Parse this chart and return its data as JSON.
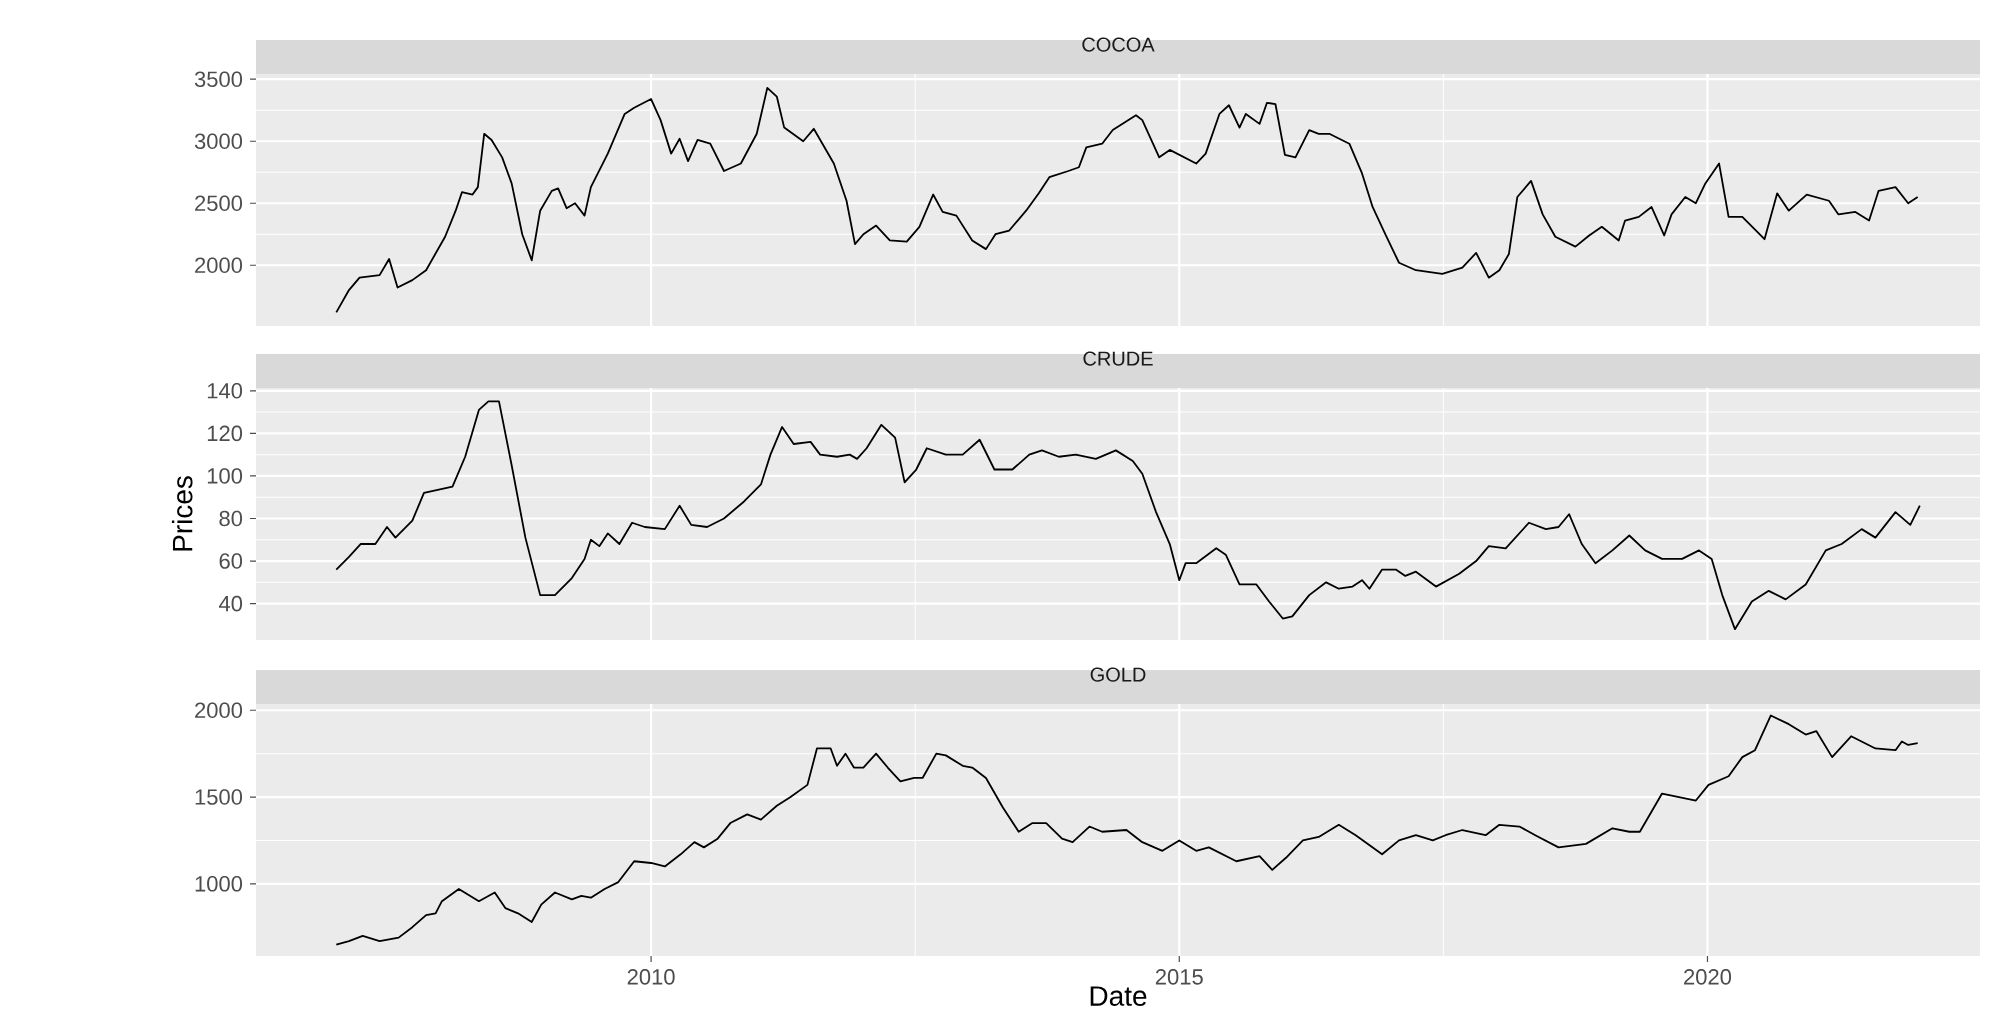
{
  "chart_data": [
    {
      "type": "line",
      "title": "COCOA",
      "tick_labels": "y",
      "grid": true,
      "xlim": [
        2006.26,
        2022.58
      ],
      "xticks": [
        2010,
        2015,
        2020
      ],
      "ylim": [
        1510,
        3542
      ],
      "yticks": [
        2000,
        2500,
        3000,
        3500
      ],
      "series": [
        {
          "color": "#000000",
          "x": [
            2007.02,
            2007.14,
            2007.24,
            2007.43,
            2007.52,
            2007.6,
            2007.74,
            2007.87,
            2008.05,
            2008.15,
            2008.21,
            2008.31,
            2008.36,
            2008.42,
            2008.49,
            2008.59,
            2008.68,
            2008.78,
            2008.87,
            2008.95,
            2009.06,
            2009.12,
            2009.2,
            2009.28,
            2009.37,
            2009.43,
            2009.59,
            2009.75,
            2009.84,
            2010.0,
            2010.09,
            2010.19,
            2010.27,
            2010.35,
            2010.44,
            2010.56,
            2010.69,
            2010.85,
            2011.0,
            2011.1,
            2011.19,
            2011.26,
            2011.44,
            2011.54,
            2011.73,
            2011.85,
            2011.93,
            2012.01,
            2012.13,
            2012.26,
            2012.42,
            2012.54,
            2012.67,
            2012.76,
            2012.89,
            2013.04,
            2013.17,
            2013.26,
            2013.39,
            2013.55,
            2013.67,
            2013.77,
            2013.95,
            2014.05,
            2014.12,
            2014.27,
            2014.37,
            2014.59,
            2014.65,
            2014.81,
            2014.91,
            2015.16,
            2015.25,
            2015.38,
            2015.47,
            2015.57,
            2015.63,
            2015.76,
            2015.83,
            2015.91,
            2016.0,
            2016.1,
            2016.23,
            2016.32,
            2016.42,
            2016.61,
            2016.73,
            2016.83,
            2016.95,
            2017.08,
            2017.24,
            2017.49,
            2017.68,
            2017.81,
            2017.93,
            2018.03,
            2018.12,
            2018.2,
            2018.33,
            2018.44,
            2018.56,
            2018.75,
            2018.88,
            2019.0,
            2019.16,
            2019.22,
            2019.35,
            2019.47,
            2019.59,
            2019.66,
            2019.79,
            2019.89,
            2019.98,
            2020.11,
            2020.2,
            2020.33,
            2020.54,
            2020.66,
            2020.77,
            2020.94,
            2021.15,
            2021.24,
            2021.4,
            2021.53,
            2021.62,
            2021.78,
            2021.9,
            2021.99
          ],
          "values": [
            1620,
            1800,
            1900,
            1920,
            2050,
            1820,
            1880,
            1960,
            2230,
            2440,
            2590,
            2570,
            2630,
            3060,
            3010,
            2870,
            2660,
            2250,
            2040,
            2440,
            2600,
            2620,
            2460,
            2500,
            2400,
            2630,
            2900,
            3220,
            3270,
            3340,
            3170,
            2900,
            3020,
            2840,
            3010,
            2980,
            2760,
            2820,
            3060,
            3430,
            3360,
            3110,
            3000,
            3100,
            2820,
            2520,
            2170,
            2250,
            2320,
            2200,
            2190,
            2310,
            2570,
            2430,
            2400,
            2200,
            2130,
            2250,
            2280,
            2440,
            2580,
            2710,
            2760,
            2790,
            2950,
            2980,
            3090,
            3210,
            3170,
            2870,
            2930,
            2820,
            2900,
            3220,
            3290,
            3110,
            3220,
            3140,
            3310,
            3300,
            2890,
            2870,
            3090,
            3060,
            3060,
            2980,
            2740,
            2470,
            2250,
            2020,
            1960,
            1930,
            1980,
            2100,
            1900,
            1960,
            2090,
            2550,
            2680,
            2410,
            2230,
            2150,
            2240,
            2310,
            2200,
            2360,
            2390,
            2470,
            2240,
            2410,
            2550,
            2500,
            2660,
            2820,
            2390,
            2390,
            2210,
            2580,
            2440,
            2570,
            2520,
            2410,
            2430,
            2360,
            2600,
            2630,
            2500,
            2550
          ]
        }
      ]
    },
    {
      "type": "line",
      "title": "CRUDE",
      "ylabel": "Prices",
      "tick_labels": "y",
      "grid": true,
      "xlim": [
        2006.26,
        2022.58
      ],
      "xticks": [
        2010,
        2015,
        2020
      ],
      "ylim": [
        22.9,
        141.3
      ],
      "yticks": [
        40,
        60,
        80,
        100,
        120,
        140
      ],
      "series": [
        {
          "color": "#000000",
          "x": [
            2007.02,
            2007.14,
            2007.25,
            2007.39,
            2007.5,
            2007.58,
            2007.74,
            2007.85,
            2008.12,
            2008.24,
            2008.37,
            2008.46,
            2008.56,
            2008.68,
            2008.81,
            2008.95,
            2009.09,
            2009.25,
            2009.37,
            2009.43,
            2009.51,
            2009.59,
            2009.7,
            2009.82,
            2009.94,
            2010.13,
            2010.27,
            2010.38,
            2010.53,
            2010.69,
            2010.88,
            2011.04,
            2011.13,
            2011.24,
            2011.35,
            2011.51,
            2011.6,
            2011.76,
            2011.88,
            2011.95,
            2012.04,
            2012.18,
            2012.31,
            2012.4,
            2012.51,
            2012.61,
            2012.79,
            2012.95,
            2013.11,
            2013.25,
            2013.42,
            2013.58,
            2013.7,
            2013.86,
            2014.02,
            2014.21,
            2014.4,
            2014.56,
            2014.65,
            2014.78,
            2014.91,
            2015.0,
            2015.06,
            2015.16,
            2015.35,
            2015.44,
            2015.57,
            2015.73,
            2015.85,
            2015.98,
            2016.07,
            2016.23,
            2016.39,
            2016.51,
            2016.64,
            2016.73,
            2016.8,
            2016.92,
            2017.05,
            2017.14,
            2017.24,
            2017.43,
            2017.65,
            2017.81,
            2017.93,
            2018.09,
            2018.31,
            2018.47,
            2018.59,
            2018.69,
            2018.81,
            2018.94,
            2019.1,
            2019.26,
            2019.41,
            2019.57,
            2019.76,
            2019.92,
            2020.04,
            2020.14,
            2020.26,
            2020.42,
            2020.58,
            2020.74,
            2020.93,
            2021.12,
            2021.27,
            2021.46,
            2021.59,
            2021.78,
            2021.92,
            2022.01
          ],
          "values": [
            56,
            62,
            68,
            68,
            76,
            71,
            79,
            92,
            95,
            109,
            131,
            135,
            135,
            105,
            71,
            44,
            44,
            52,
            61,
            70,
            67,
            73,
            68,
            78,
            76,
            75,
            86,
            77,
            76,
            80,
            88,
            96,
            110,
            123,
            115,
            116,
            110,
            109,
            110,
            108,
            113,
            124,
            118,
            97,
            103,
            113,
            110,
            110,
            117,
            103,
            103,
            110,
            112,
            109,
            110,
            108,
            112,
            107,
            101,
            83,
            68,
            51,
            59,
            59,
            66,
            63,
            49,
            49,
            41,
            33,
            34,
            44,
            50,
            47,
            48,
            51,
            47,
            56,
            56,
            53,
            55,
            48,
            54,
            60,
            67,
            66,
            78,
            75,
            76,
            82,
            68,
            59,
            65,
            72,
            65,
            61,
            61,
            65,
            61,
            44,
            28,
            41,
            46,
            42,
            49,
            65,
            68,
            75,
            71,
            83,
            77,
            86
          ]
        }
      ]
    },
    {
      "type": "line",
      "title": "GOLD",
      "xlabel": "Date",
      "grid": true,
      "xlim": [
        2006.26,
        2022.58
      ],
      "xticks": [
        2010,
        2015,
        2020
      ],
      "ylim": [
        584,
        2036
      ],
      "yticks": [
        1000,
        1500,
        2000
      ],
      "series": [
        {
          "color": "#000000",
          "x": [
            2007.02,
            2007.14,
            2007.27,
            2007.43,
            2007.61,
            2007.74,
            2007.87,
            2007.96,
            2008.02,
            2008.18,
            2008.37,
            2008.52,
            2008.62,
            2008.74,
            2008.87,
            2008.96,
            2009.09,
            2009.25,
            2009.34,
            2009.43,
            2009.56,
            2009.69,
            2009.84,
            2010.0,
            2010.13,
            2010.28,
            2010.41,
            2010.5,
            2010.63,
            2010.75,
            2010.91,
            2011.04,
            2011.19,
            2011.32,
            2011.48,
            2011.57,
            2011.7,
            2011.76,
            2011.84,
            2011.92,
            2012.01,
            2012.13,
            2012.24,
            2012.36,
            2012.49,
            2012.57,
            2012.7,
            2012.79,
            2012.95,
            2013.04,
            2013.17,
            2013.33,
            2013.48,
            2013.61,
            2013.74,
            2013.89,
            2013.99,
            2014.15,
            2014.27,
            2014.5,
            2014.65,
            2014.84,
            2015.0,
            2015.16,
            2015.28,
            2015.54,
            2015.76,
            2015.88,
            2016.01,
            2016.17,
            2016.32,
            2016.51,
            2016.67,
            2016.92,
            2017.08,
            2017.24,
            2017.4,
            2017.52,
            2017.68,
            2017.9,
            2018.03,
            2018.22,
            2018.37,
            2018.59,
            2018.85,
            2019.1,
            2019.26,
            2019.36,
            2019.57,
            2019.73,
            2019.89,
            2020.01,
            2020.2,
            2020.33,
            2020.45,
            2020.6,
            2020.77,
            2020.93,
            2021.03,
            2021.18,
            2021.36,
            2021.59,
            2021.78,
            2021.84,
            2021.9,
            2021.99
          ],
          "values": [
            650,
            670,
            700,
            670,
            690,
            750,
            820,
            830,
            900,
            970,
            900,
            950,
            860,
            830,
            780,
            880,
            950,
            910,
            930,
            920,
            970,
            1010,
            1130,
            1120,
            1100,
            1170,
            1240,
            1210,
            1260,
            1350,
            1400,
            1370,
            1450,
            1500,
            1570,
            1780,
            1780,
            1680,
            1750,
            1670,
            1670,
            1750,
            1670,
            1590,
            1610,
            1610,
            1750,
            1740,
            1680,
            1670,
            1610,
            1440,
            1300,
            1350,
            1350,
            1260,
            1240,
            1330,
            1300,
            1310,
            1240,
            1190,
            1250,
            1190,
            1210,
            1130,
            1160,
            1080,
            1150,
            1250,
            1270,
            1340,
            1280,
            1170,
            1250,
            1280,
            1250,
            1280,
            1310,
            1280,
            1340,
            1330,
            1280,
            1210,
            1230,
            1320,
            1300,
            1300,
            1520,
            1500,
            1480,
            1570,
            1620,
            1730,
            1770,
            1970,
            1920,
            1860,
            1880,
            1730,
            1850,
            1780,
            1770,
            1820,
            1800,
            1810
          ]
        }
      ]
    }
  ]
}
